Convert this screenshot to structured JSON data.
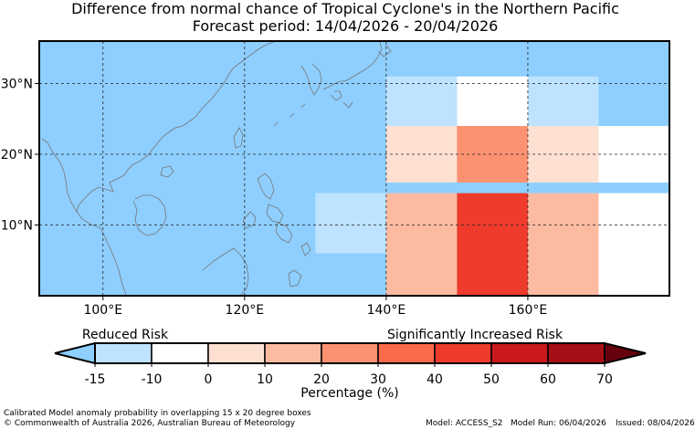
{
  "title_line1": "Difference from normal chance of Tropical Cyclone's in the Northern Pacific",
  "title_line2": "Forecast period: 14/04/2026 - 20/04/2026",
  "map": {
    "lon_labels": [
      "100°E",
      "120°E",
      "140°E",
      "160°E"
    ],
    "lat_labels": [
      "30°N",
      "20°N",
      "10°N"
    ],
    "lon_ticks": [
      100,
      120,
      140,
      160
    ],
    "lat_ticks": [
      30,
      20,
      10
    ],
    "lon_range": [
      91,
      180
    ],
    "lat_range": [
      0,
      36
    ],
    "ocean_color": "#8ecfff",
    "cells": [
      {
        "lon": [
          140,
          150
        ],
        "lat": [
          24,
          31
        ],
        "color": "#bee3ff"
      },
      {
        "lon": [
          150,
          160
        ],
        "lat": [
          24,
          31
        ],
        "color": "#ffffff"
      },
      {
        "lon": [
          160,
          170
        ],
        "lat": [
          24,
          31
        ],
        "color": "#bee3ff"
      },
      {
        "lon": [
          140,
          150
        ],
        "lat": [
          16,
          24
        ],
        "color": "#fee0d3"
      },
      {
        "lon": [
          150,
          160
        ],
        "lat": [
          16,
          24
        ],
        "color": "#fc9272"
      },
      {
        "lon": [
          160,
          170
        ],
        "lat": [
          16,
          24
        ],
        "color": "#fee0d3"
      },
      {
        "lon": [
          170,
          180
        ],
        "lat": [
          16,
          24
        ],
        "color": "#ffffff"
      },
      {
        "lon": [
          130,
          140
        ],
        "lat": [
          6,
          14.5
        ],
        "color": "#bee3ff"
      },
      {
        "lon": [
          140,
          150
        ],
        "lat": [
          0,
          14.5
        ],
        "color": "#fcbba1"
      },
      {
        "lon": [
          150,
          160
        ],
        "lat": [
          0,
          14.5
        ],
        "color": "#ef3b2c"
      },
      {
        "lon": [
          160,
          170
        ],
        "lat": [
          0,
          14.5
        ],
        "color": "#fcbba1"
      },
      {
        "lon": [
          170,
          180
        ],
        "lat": [
          0,
          14.5
        ],
        "color": "#ffffff"
      }
    ]
  },
  "legend": {
    "reduced_label": "Reduced Risk",
    "increased_label": "Significantly Increased Risk",
    "tick_labels": [
      "-15",
      "-10",
      "0",
      "10",
      "20",
      "30",
      "40",
      "50",
      "60",
      "70"
    ],
    "colors": [
      "#bee3ff",
      "#ffffff",
      "#fee0d3",
      "#fcbba1",
      "#fc9272",
      "#fb6a4a",
      "#ef3b2c",
      "#cb181d",
      "#a50f15"
    ],
    "under_color": "#8ecfff",
    "over_color": "#67000d",
    "axis_label": "Percentage (%)"
  },
  "footer": {
    "line1": "Calibrated Model anomaly probability in overlapping 15 x 20 degree boxes",
    "line2": "© Commonwealth of Australia 2026, Australian Bureau of Meteorology",
    "model": "Model: ACCESS_S2",
    "run": "Model Run: 06/04/2026",
    "issued": "Issued: 08/04/2026"
  }
}
